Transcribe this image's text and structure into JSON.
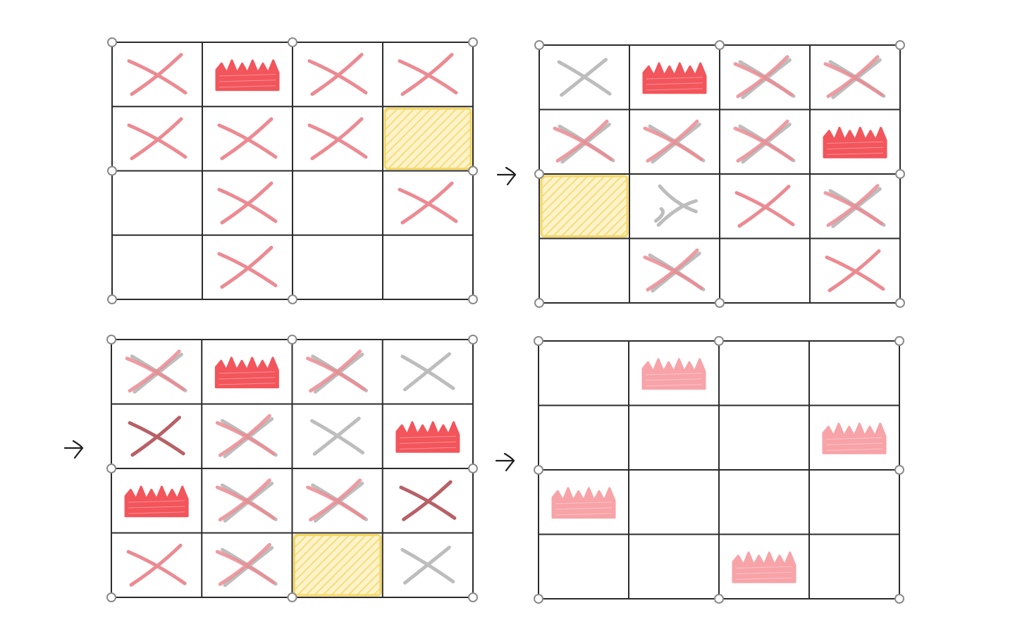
{
  "colors": {
    "grid_line": "#2b2b2b",
    "handle_stroke": "#8a8a8a",
    "handle_fill": "#ffffff",
    "red_x": "#ec8a92",
    "gray_x": "#bdbdbd",
    "dark_red_x": "#b04f55",
    "crown_red": "#f2555b",
    "crown_pink": "#f7a3a8",
    "highlight_fill": "#fbeaa0",
    "highlight_stroke": "#f5d764",
    "arrow": "#1f1f1f"
  },
  "steps": [
    {
      "label": "step-1",
      "queens": [
        [
          0,
          1
        ]
      ],
      "highlight": [
        1,
        3
      ],
      "cells": [
        [
          "red",
          null,
          "red",
          "red"
        ],
        [
          "red",
          "red",
          "red",
          null
        ],
        [
          null,
          "red",
          null,
          "red"
        ],
        [
          null,
          "red",
          null,
          null
        ]
      ]
    },
    {
      "label": "step-2",
      "queens": [
        [
          0,
          1
        ],
        [
          1,
          3
        ]
      ],
      "highlight": [
        2,
        0
      ],
      "cells": [
        [
          "gray",
          null,
          "redgray",
          "redgray"
        ],
        [
          "redgray",
          "redgray",
          "redgray",
          null
        ],
        [
          null,
          "graycheck",
          "red",
          "redgray"
        ],
        [
          null,
          "redgray",
          null,
          "red"
        ]
      ]
    },
    {
      "label": "step-3",
      "queens": [
        [
          0,
          1
        ],
        [
          1,
          3
        ],
        [
          2,
          0
        ]
      ],
      "highlight": [
        3,
        2
      ],
      "cells": [
        [
          "redgray",
          null,
          "redgray",
          "gray"
        ],
        [
          "darkred",
          "redgray",
          "gray",
          null
        ],
        [
          null,
          "redgray",
          "redgray",
          "darkred"
        ],
        [
          "red",
          "redgray",
          null,
          "gray"
        ]
      ]
    },
    {
      "label": "step-4",
      "queens_final": [
        [
          0,
          1
        ],
        [
          1,
          3
        ],
        [
          2,
          0
        ],
        [
          3,
          2
        ]
      ],
      "highlight": null,
      "cells": [
        [
          null,
          null,
          null,
          null
        ],
        [
          null,
          null,
          null,
          null
        ],
        [
          null,
          null,
          null,
          null
        ],
        [
          null,
          null,
          null,
          null
        ]
      ]
    }
  ],
  "arrows": [
    {
      "name": "arrow-step1-to-step2",
      "glyph": "arrow-right"
    },
    {
      "name": "arrow-step2-to-step3",
      "glyph": "arrow-right"
    },
    {
      "name": "arrow-step3-to-step4",
      "glyph": "arrow-right"
    }
  ]
}
